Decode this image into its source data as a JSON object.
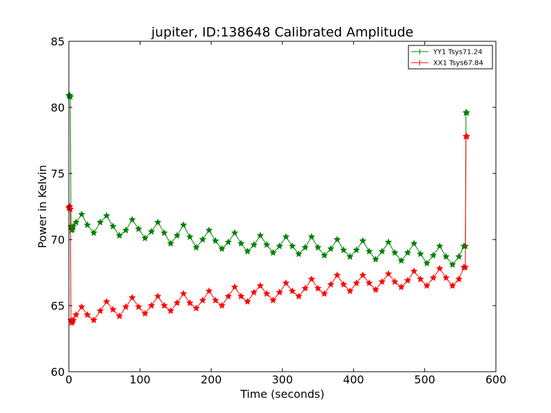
{
  "chart_data": {
    "type": "line",
    "title": "jupiter, ID:138648 Calibrated Amplitude",
    "xlabel": "Time (seconds)",
    "ylabel": "Power in Kelvin",
    "xlim": [
      0,
      600
    ],
    "ylim": [
      60,
      85
    ],
    "xticks": [
      0,
      100,
      200,
      300,
      400,
      500,
      600
    ],
    "yticks": [
      60,
      65,
      70,
      75,
      80,
      85
    ],
    "grid": false,
    "legend_position": "top-right",
    "series": [
      {
        "name": "YY1 Tsys71.24",
        "color": "#008000",
        "marker": "star",
        "x": [
          0,
          1,
          2,
          3,
          4,
          5,
          6,
          10,
          18,
          26,
          35,
          44,
          53,
          62,
          71,
          80,
          89,
          98,
          107,
          116,
          125,
          134,
          143,
          152,
          161,
          170,
          179,
          188,
          197,
          206,
          215,
          224,
          233,
          242,
          251,
          260,
          269,
          278,
          287,
          296,
          305,
          314,
          323,
          332,
          341,
          350,
          359,
          368,
          377,
          386,
          395,
          404,
          413,
          422,
          431,
          440,
          449,
          458,
          467,
          476,
          485,
          494,
          503,
          512,
          521,
          530,
          539,
          548,
          555,
          557,
          558,
          559
        ],
        "y": [
          80.9,
          80.9,
          80.8,
          71.0,
          70.7,
          70.8,
          71.0,
          71.3,
          71.9,
          71.1,
          70.5,
          71.3,
          71.8,
          71.0,
          70.3,
          70.7,
          71.5,
          70.8,
          70.1,
          70.6,
          71.3,
          70.5,
          69.7,
          70.3,
          71.1,
          70.2,
          69.4,
          70.0,
          70.7,
          69.9,
          69.3,
          69.8,
          70.5,
          69.7,
          69.1,
          69.6,
          70.3,
          69.6,
          69.0,
          69.5,
          70.2,
          69.5,
          68.9,
          69.4,
          70.2,
          69.4,
          68.8,
          69.3,
          70.0,
          69.2,
          68.7,
          69.2,
          69.9,
          69.1,
          68.5,
          69.1,
          69.8,
          69.0,
          68.4,
          69.0,
          69.7,
          68.9,
          68.2,
          68.8,
          69.5,
          68.7,
          68.1,
          68.7,
          69.5,
          69.5,
          79.6,
          79.6
        ]
      },
      {
        "name": "XX1 Tsys67.84",
        "color": "#ff0000",
        "marker": "star",
        "x": [
          0,
          1,
          2,
          3,
          4,
          5,
          6,
          10,
          18,
          26,
          35,
          44,
          53,
          62,
          71,
          80,
          89,
          98,
          107,
          116,
          125,
          134,
          143,
          152,
          161,
          170,
          179,
          188,
          197,
          206,
          215,
          224,
          233,
          242,
          251,
          260,
          269,
          278,
          287,
          296,
          305,
          314,
          323,
          332,
          341,
          350,
          359,
          368,
          377,
          386,
          395,
          404,
          413,
          422,
          431,
          440,
          449,
          458,
          467,
          476,
          485,
          494,
          503,
          512,
          521,
          530,
          539,
          548,
          555,
          557,
          558,
          559
        ],
        "y": [
          72.4,
          72.5,
          72.3,
          63.9,
          63.7,
          63.8,
          63.9,
          64.3,
          64.9,
          64.3,
          63.9,
          64.6,
          65.3,
          64.7,
          64.2,
          64.9,
          65.6,
          64.9,
          64.4,
          65.0,
          65.7,
          65.0,
          64.6,
          65.2,
          65.9,
          65.2,
          64.8,
          65.4,
          66.1,
          65.4,
          65.0,
          65.7,
          66.4,
          65.7,
          65.3,
          66.0,
          66.5,
          65.9,
          65.4,
          66.0,
          66.7,
          66.1,
          65.7,
          66.3,
          67.0,
          66.3,
          65.9,
          66.6,
          67.3,
          66.6,
          66.1,
          66.7,
          67.3,
          66.7,
          66.2,
          66.8,
          67.4,
          66.8,
          66.4,
          66.9,
          67.6,
          67.0,
          66.5,
          67.1,
          67.8,
          67.1,
          66.5,
          67.0,
          67.9,
          67.9,
          77.8,
          77.8
        ]
      }
    ]
  }
}
